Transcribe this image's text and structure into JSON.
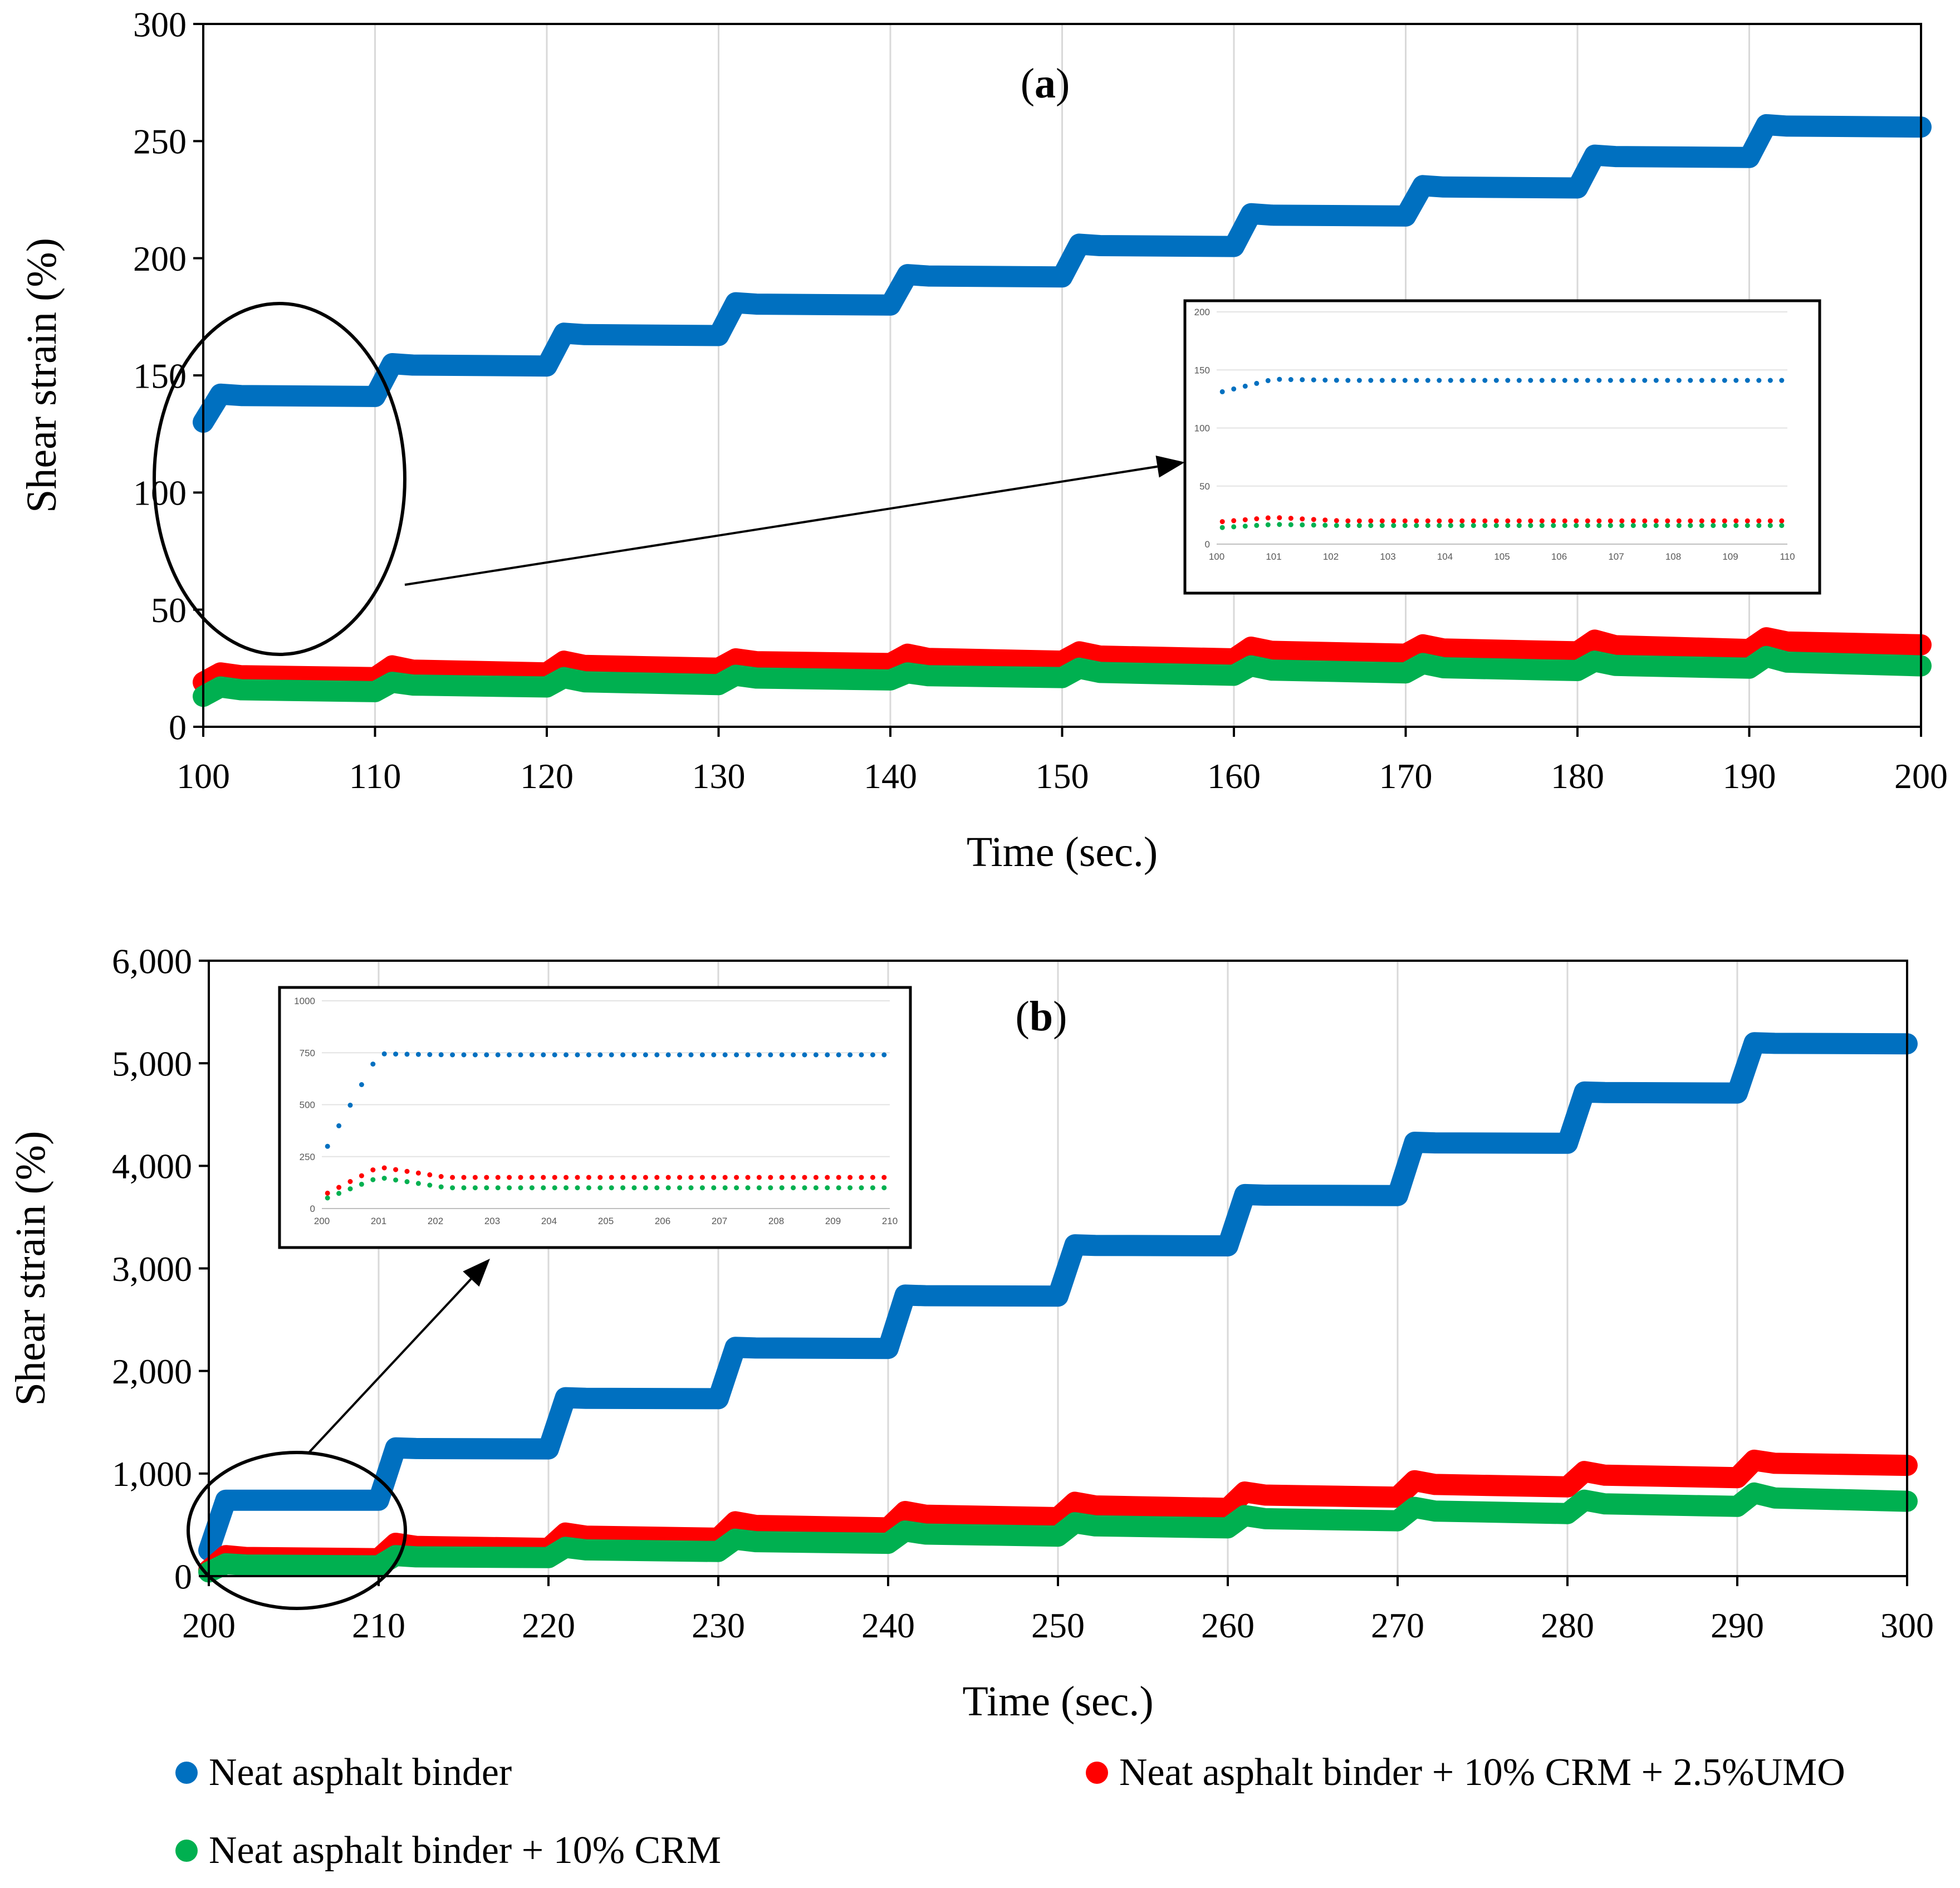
{
  "legend": {
    "items": [
      {
        "label": "Neat asphalt binder",
        "color": "#0070C0"
      },
      {
        "label": "Neat asphalt binder + 10% CRM + 2.5%UMO",
        "color": "#FF0000"
      },
      {
        "label": "Neat asphalt binder + 10% CRM",
        "color": "#00B050"
      }
    ]
  },
  "chart_data": [
    {
      "id": "a",
      "type": "line",
      "panel_label_letter": "a",
      "xlabel": "Time (sec.)",
      "ylabel": "Shear strain (%)",
      "xlim": [
        100,
        200
      ],
      "ylim": [
        0,
        300
      ],
      "x_ticks": [
        100,
        110,
        120,
        130,
        140,
        150,
        160,
        170,
        180,
        190,
        200
      ],
      "x_tick_labels": [
        "100",
        "110",
        "120",
        "130",
        "140",
        "150",
        "160",
        "170",
        "180",
        "190",
        "200"
      ],
      "y_ticks": [
        0,
        50,
        100,
        150,
        200,
        250,
        300
      ],
      "y_tick_labels": [
        "0",
        "50",
        "100",
        "150",
        "200",
        "250",
        "300"
      ],
      "grid": "vertical",
      "step_x": [
        100,
        110,
        120,
        130,
        140,
        150,
        160,
        170,
        180,
        190
      ],
      "series": [
        {
          "name": "Neat asphalt binder",
          "color": "#0070C0",
          "start": 130,
          "peaks": [
            142,
            155,
            168,
            181,
            193,
            206,
            219,
            231,
            244,
            257
          ],
          "levels": [
            141,
            154,
            167,
            180,
            192,
            205,
            218,
            230,
            243,
            256
          ]
        },
        {
          "name": "Neat asphalt binder + 10% CRM + 2.5%UMO",
          "color": "#FF0000",
          "start": 19,
          "peaks": [
            23,
            26,
            28,
            29,
            31,
            32,
            34,
            35,
            37,
            38
          ],
          "levels": [
            21,
            23,
            25,
            27,
            28,
            29,
            31,
            32,
            33,
            35
          ]
        },
        {
          "name": "Neat asphalt binder + 10% CRM",
          "color": "#00B050",
          "start": 13,
          "peaks": [
            17,
            19,
            21,
            22,
            23,
            25,
            26,
            27,
            28,
            30
          ],
          "levels": [
            15,
            17,
            18,
            20,
            21,
            22,
            23,
            24,
            25,
            26
          ]
        }
      ],
      "inset": {
        "xlim": [
          100,
          110
        ],
        "ylim": [
          0,
          200
        ],
        "x_ticks": [
          100,
          101,
          102,
          103,
          104,
          105,
          106,
          107,
          108,
          109,
          110
        ],
        "x_tick_labels": [
          "100",
          "101",
          "102",
          "103",
          "104",
          "105",
          "106",
          "107",
          "108",
          "109",
          "110"
        ],
        "y_ticks": [
          0,
          50,
          100,
          150,
          200
        ],
        "y_tick_labels": [
          "0",
          "50",
          "100",
          "150",
          "200"
        ],
        "x_points_from": 100.1,
        "x_points_to": 110,
        "x_points_step": 0.2,
        "series": [
          {
            "color": "#0070C0",
            "start": 130,
            "peak": 142,
            "level": 141
          },
          {
            "color": "#FF0000",
            "start": 19,
            "peak": 23,
            "level": 20
          },
          {
            "color": "#00B050",
            "start": 14,
            "peak": 17,
            "level": 16
          }
        ]
      }
    },
    {
      "id": "b",
      "type": "line",
      "panel_label_letter": "b",
      "xlabel": "Time (sec.)",
      "ylabel": "Shear strain (%)",
      "xlim": [
        200,
        300
      ],
      "ylim": [
        0,
        6000
      ],
      "x_ticks": [
        200,
        210,
        220,
        230,
        240,
        250,
        260,
        270,
        280,
        290,
        300
      ],
      "x_tick_labels": [
        "200",
        "210",
        "220",
        "230",
        "240",
        "250",
        "260",
        "270",
        "280",
        "290",
        "300"
      ],
      "y_ticks": [
        0,
        1000,
        2000,
        3000,
        4000,
        5000,
        6000
      ],
      "y_tick_labels": [
        "0",
        "1,000",
        "2,000",
        "3,000",
        "4,000",
        "5,000",
        "6,000"
      ],
      "grid": "vertical",
      "step_x": [
        200,
        210,
        220,
        230,
        240,
        250,
        260,
        270,
        280,
        290
      ],
      "series": [
        {
          "name": "Neat asphalt binder",
          "color": "#0070C0",
          "start": 250,
          "peaks": [
            740,
            1250,
            1740,
            2230,
            2740,
            3230,
            3720,
            4230,
            4720,
            5200
          ],
          "levels": [
            740,
            1240,
            1730,
            2220,
            2730,
            3220,
            3710,
            4220,
            4710,
            5190
          ]
        },
        {
          "name": "Neat asphalt binder + 10% CRM + 2.5%UMO",
          "color": "#FF0000",
          "start": 60,
          "peaks": [
            200,
            320,
            420,
            530,
            630,
            720,
            820,
            930,
            1020,
            1130
          ],
          "levels": [
            170,
            270,
            370,
            470,
            570,
            660,
            770,
            870,
            960,
            1080
          ]
        },
        {
          "name": "Neat asphalt binder + 10% CRM",
          "color": "#00B050",
          "start": 40,
          "peaks": [
            120,
            200,
            280,
            360,
            440,
            520,
            590,
            670,
            740,
            810
          ],
          "levels": [
            100,
            180,
            240,
            320,
            390,
            470,
            540,
            610,
            680,
            730
          ]
        }
      ],
      "inset": {
        "xlim": [
          200,
          210
        ],
        "ylim": [
          0,
          1000
        ],
        "x_ticks": [
          200,
          201,
          202,
          203,
          204,
          205,
          206,
          207,
          208,
          209,
          210
        ],
        "x_tick_labels": [
          "200",
          "201",
          "202",
          "203",
          "204",
          "205",
          "206",
          "207",
          "208",
          "209",
          "210"
        ],
        "y_ticks": [
          0,
          250,
          500,
          750,
          1000
        ],
        "y_tick_labels": [
          "0",
          "250",
          "500",
          "750",
          "1000"
        ],
        "x_points_from": 200.1,
        "x_points_to": 210,
        "x_points_step": 0.2,
        "series": [
          {
            "color": "#0070C0",
            "start": 250,
            "peak": 745,
            "level": 740
          },
          {
            "color": "#FF0000",
            "start": 60,
            "peak": 200,
            "level": 150
          },
          {
            "color": "#00B050",
            "start": 40,
            "peak": 150,
            "level": 100
          }
        ]
      }
    }
  ]
}
